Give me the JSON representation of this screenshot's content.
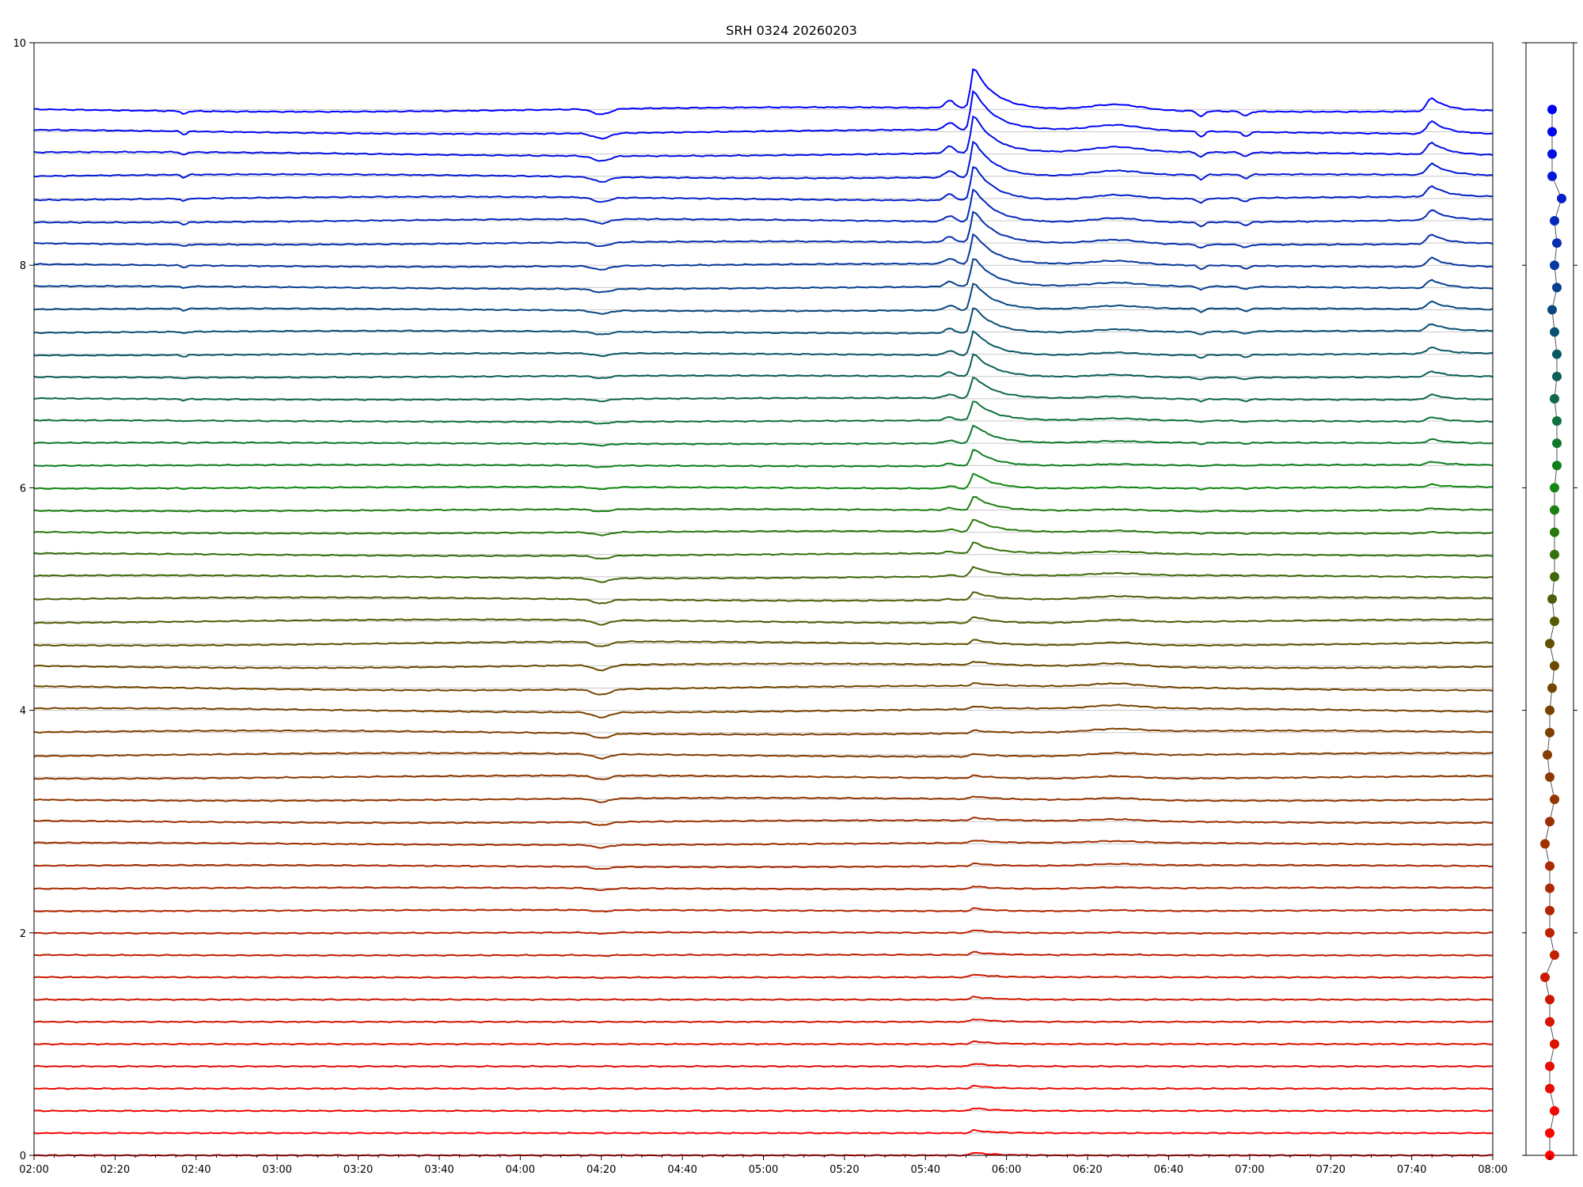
{
  "chart_data": {
    "type": "line",
    "title": "SRH 0324 20260203",
    "xlabel": "",
    "ylabel": "",
    "x_tick_labels": [
      "02:00",
      "02:20",
      "02:40",
      "03:00",
      "03:20",
      "03:40",
      "04:00",
      "04:20",
      "04:40",
      "05:00",
      "05:20",
      "05:40",
      "06:00",
      "06:20",
      "06:40",
      "07:00",
      "07:20",
      "07:40",
      "08:00"
    ],
    "xlim_minutes_after_0200": [
      0,
      360
    ],
    "y_ticks": [
      0,
      2,
      4,
      6,
      8,
      10
    ],
    "ylim": [
      0,
      10
    ],
    "series_count": 48,
    "series_spacing": 0.2,
    "color_stops": [
      {
        "index": 0,
        "color": "#ff0000"
      },
      {
        "index": 22,
        "color": "#6b4a00"
      },
      {
        "index": 30,
        "color": "#118811"
      },
      {
        "index": 47,
        "color": "#0000ff"
      }
    ],
    "events": [
      {
        "time": "02:37",
        "channels": "upper",
        "shape": "dip"
      },
      {
        "time": "04:20",
        "channels": "middle",
        "shape": "dip"
      },
      {
        "time": "05:52",
        "channels": "all",
        "shape": "flare-peak"
      },
      {
        "time": "06:27",
        "channels": "upper",
        "shape": "broad-bump"
      },
      {
        "time": "06:48",
        "channels": "upper",
        "shape": "dip"
      },
      {
        "time": "06:59",
        "channels": "upper",
        "shape": "dip"
      },
      {
        "time": "07:45",
        "channels": "upper",
        "shape": "peak"
      }
    ],
    "side_panel": {
      "type": "scatter",
      "description_points": 48,
      "y_ticks": [
        0,
        2,
        4,
        6,
        8,
        10
      ],
      "offsets": [
        0,
        0,
        0.1,
        0,
        0,
        0.1,
        0,
        0,
        -0.1,
        0.1,
        0,
        0,
        0,
        0,
        -0.1,
        0,
        0.1,
        0,
        -0.05,
        0,
        0,
        0.05,
        0.1,
        0,
        0.1,
        0.05,
        0.1,
        0.1,
        0.1,
        0.1,
        0.1,
        0.15,
        0.15,
        0.15,
        0.1,
        0.15,
        0.15,
        0.1,
        0.05,
        0.15,
        0.1,
        0.15,
        0.1,
        0.25,
        0.05,
        0.05,
        0.05,
        0.05
      ]
    }
  }
}
